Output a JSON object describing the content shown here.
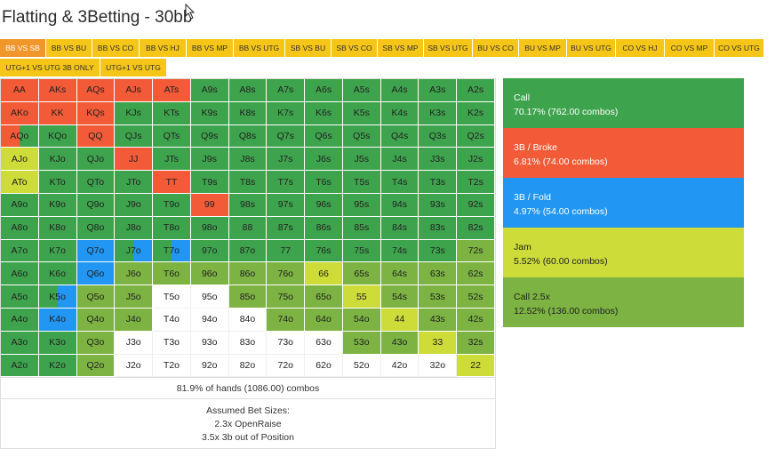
{
  "page": {
    "title": "Flatting & 3Betting - 30bb"
  },
  "colors": {
    "call": "#3ea34d",
    "broke": "#f25a38",
    "fold": "#2196f3",
    "jam": "#cddc39",
    "call25": "#7cb342",
    "none": "#ffffff",
    "tab": "#f5c518",
    "tab_active": "#f0962a"
  },
  "tabs_row1": [
    {
      "label": "BB VS SB",
      "active": true
    },
    {
      "label": "BB VS BU"
    },
    {
      "label": "BB VS CO"
    },
    {
      "label": "BB VS HJ"
    },
    {
      "label": "BB VS MP"
    },
    {
      "label": "BB VS UTG"
    },
    {
      "label": "SB VS BU"
    },
    {
      "label": "SB VS CO"
    },
    {
      "label": "SB VS MP"
    },
    {
      "label": "SB VS UTG"
    },
    {
      "label": "BU VS CO"
    },
    {
      "label": "BU VS MP"
    },
    {
      "label": "BU VS UTG"
    },
    {
      "label": "CO VS HJ"
    },
    {
      "label": "CO VS MP"
    },
    {
      "label": "CO VS UTG"
    }
  ],
  "tabs_row2": [
    {
      "label": "UTG+1 VS UTG 3B ONLY"
    },
    {
      "label": "UTG+1 VS UTG"
    }
  ],
  "grid": [
    [
      [
        "AA",
        "broke"
      ],
      [
        "AKs",
        "broke"
      ],
      [
        "AQs",
        "broke"
      ],
      [
        "AJs",
        "broke"
      ],
      [
        "ATs",
        "broke"
      ],
      [
        "A9s",
        "call"
      ],
      [
        "A8s",
        "call"
      ],
      [
        "A7s",
        "call"
      ],
      [
        "A6s",
        "call"
      ],
      [
        "A5s",
        "call"
      ],
      [
        "A4s",
        "call"
      ],
      [
        "A3s",
        "call"
      ],
      [
        "A2s",
        "call"
      ]
    ],
    [
      [
        "AKo",
        "broke"
      ],
      [
        "KK",
        "broke"
      ],
      [
        "KQs",
        "broke"
      ],
      [
        "KJs",
        "call"
      ],
      [
        "KTs",
        "call"
      ],
      [
        "K9s",
        "call"
      ],
      [
        "K8s",
        "call"
      ],
      [
        "K7s",
        "call"
      ],
      [
        "K6s",
        "call"
      ],
      [
        "K5s",
        "call"
      ],
      [
        "K4s",
        "call"
      ],
      [
        "K3s",
        "call"
      ],
      [
        "K2s",
        "call"
      ]
    ],
    [
      [
        "AQo",
        "broke",
        "call",
        0.5
      ],
      [
        "KQo",
        "call"
      ],
      [
        "QQ",
        "broke"
      ],
      [
        "QJs",
        "call"
      ],
      [
        "QTs",
        "call"
      ],
      [
        "Q9s",
        "call"
      ],
      [
        "Q8s",
        "call"
      ],
      [
        "Q7s",
        "call"
      ],
      [
        "Q6s",
        "call"
      ],
      [
        "Q5s",
        "call"
      ],
      [
        "Q4s",
        "call"
      ],
      [
        "Q3s",
        "call"
      ],
      [
        "Q2s",
        "call"
      ]
    ],
    [
      [
        "AJo",
        "jam"
      ],
      [
        "KJo",
        "call"
      ],
      [
        "QJo",
        "call"
      ],
      [
        "JJ",
        "broke"
      ],
      [
        "JTs",
        "call"
      ],
      [
        "J9s",
        "call"
      ],
      [
        "J8s",
        "call"
      ],
      [
        "J7s",
        "call"
      ],
      [
        "J6s",
        "call"
      ],
      [
        "J5s",
        "call"
      ],
      [
        "J4s",
        "call"
      ],
      [
        "J3s",
        "call"
      ],
      [
        "J2s",
        "call"
      ]
    ],
    [
      [
        "ATo",
        "jam"
      ],
      [
        "KTo",
        "call"
      ],
      [
        "QTo",
        "call"
      ],
      [
        "JTo",
        "call"
      ],
      [
        "TT",
        "broke"
      ],
      [
        "T9s",
        "call"
      ],
      [
        "T8s",
        "call"
      ],
      [
        "T7s",
        "call"
      ],
      [
        "T6s",
        "call"
      ],
      [
        "T5s",
        "call"
      ],
      [
        "T4s",
        "call"
      ],
      [
        "T3s",
        "call"
      ],
      [
        "T2s",
        "call"
      ]
    ],
    [
      [
        "A9o",
        "call"
      ],
      [
        "K9o",
        "call"
      ],
      [
        "Q9o",
        "call"
      ],
      [
        "J9o",
        "call"
      ],
      [
        "T9o",
        "call"
      ],
      [
        "99",
        "broke"
      ],
      [
        "98s",
        "call"
      ],
      [
        "97s",
        "call"
      ],
      [
        "96s",
        "call"
      ],
      [
        "95s",
        "call"
      ],
      [
        "94s",
        "call"
      ],
      [
        "93s",
        "call"
      ],
      [
        "92s",
        "call"
      ]
    ],
    [
      [
        "A8o",
        "call"
      ],
      [
        "K8o",
        "call"
      ],
      [
        "Q8o",
        "call"
      ],
      [
        "J8o",
        "call"
      ],
      [
        "T8o",
        "call"
      ],
      [
        "98o",
        "call"
      ],
      [
        "88",
        "call"
      ],
      [
        "87s",
        "call"
      ],
      [
        "86s",
        "call"
      ],
      [
        "85s",
        "call"
      ],
      [
        "84s",
        "call"
      ],
      [
        "83s",
        "call"
      ],
      [
        "82s",
        "call"
      ]
    ],
    [
      [
        "A7o",
        "call"
      ],
      [
        "K7o",
        "call"
      ],
      [
        "Q7o",
        "fold"
      ],
      [
        "J7o",
        "call",
        "fold",
        0.5
      ],
      [
        "T7o",
        "call",
        "fold",
        0.5
      ],
      [
        "97o",
        "call"
      ],
      [
        "87o",
        "call"
      ],
      [
        "77",
        "call"
      ],
      [
        "76s",
        "call"
      ],
      [
        "75s",
        "call"
      ],
      [
        "74s",
        "call"
      ],
      [
        "73s",
        "call"
      ],
      [
        "72s",
        "c25"
      ]
    ],
    [
      [
        "A6o",
        "call"
      ],
      [
        "K6o",
        "call"
      ],
      [
        "Q6o",
        "fold"
      ],
      [
        "J6o",
        "c25"
      ],
      [
        "T6o",
        "c25"
      ],
      [
        "96o",
        "c25"
      ],
      [
        "86o",
        "c25"
      ],
      [
        "76o",
        "c25"
      ],
      [
        "66",
        "jam"
      ],
      [
        "65s",
        "c25"
      ],
      [
        "64s",
        "c25"
      ],
      [
        "63s",
        "c25"
      ],
      [
        "62s",
        "c25"
      ]
    ],
    [
      [
        "A5o",
        "call"
      ],
      [
        "K5o",
        "call",
        "fold",
        0.5
      ],
      [
        "Q5o",
        "c25"
      ],
      [
        "J5o",
        "c25"
      ],
      [
        "T5o",
        "none"
      ],
      [
        "95o",
        "none"
      ],
      [
        "85o",
        "c25"
      ],
      [
        "75o",
        "c25"
      ],
      [
        "65o",
        "c25"
      ],
      [
        "55",
        "jam"
      ],
      [
        "54s",
        "c25"
      ],
      [
        "53s",
        "c25"
      ],
      [
        "52s",
        "c25"
      ]
    ],
    [
      [
        "A4o",
        "call"
      ],
      [
        "K4o",
        "fold"
      ],
      [
        "Q4o",
        "c25"
      ],
      [
        "J4o",
        "c25"
      ],
      [
        "T4o",
        "none"
      ],
      [
        "94o",
        "none"
      ],
      [
        "84o",
        "none"
      ],
      [
        "74o",
        "c25"
      ],
      [
        "64o",
        "c25"
      ],
      [
        "54o",
        "c25"
      ],
      [
        "44",
        "jam"
      ],
      [
        "43s",
        "c25"
      ],
      [
        "42s",
        "c25"
      ]
    ],
    [
      [
        "A3o",
        "call"
      ],
      [
        "K3o",
        "call"
      ],
      [
        "Q3o",
        "c25"
      ],
      [
        "J3o",
        "none"
      ],
      [
        "T3o",
        "none"
      ],
      [
        "93o",
        "none"
      ],
      [
        "83o",
        "none"
      ],
      [
        "73o",
        "none"
      ],
      [
        "63o",
        "none"
      ],
      [
        "53o",
        "c25"
      ],
      [
        "43o",
        "c25"
      ],
      [
        "33",
        "jam"
      ],
      [
        "32s",
        "c25"
      ]
    ],
    [
      [
        "A2o",
        "call"
      ],
      [
        "K2o",
        "call"
      ],
      [
        "Q2o",
        "c25"
      ],
      [
        "J2o",
        "none"
      ],
      [
        "T2o",
        "none"
      ],
      [
        "92o",
        "none"
      ],
      [
        "82o",
        "none"
      ],
      [
        "72o",
        "none"
      ],
      [
        "62o",
        "none"
      ],
      [
        "52o",
        "none"
      ],
      [
        "42o",
        "none"
      ],
      [
        "32o",
        "none"
      ],
      [
        "22",
        "jam"
      ]
    ]
  ],
  "summary": "81.9% of hands (1086.00) combos",
  "bet_sizes": {
    "heading": "Assumed Bet Sizes:",
    "line1": "2.3x OpenRaise",
    "line2": "3.5x 3b out of Position"
  },
  "legend": [
    {
      "action": "call",
      "label": "Call",
      "stats": "70.17% (762.00 combos)"
    },
    {
      "action": "broke",
      "label": "3B / Broke",
      "stats": "6.81% (74.00 combos)"
    },
    {
      "action": "fold",
      "label": "3B / Fold",
      "stats": "4.97% (54.00 combos)"
    },
    {
      "action": "jam",
      "label": "Jam",
      "stats": "5.52% (60.00 combos)"
    },
    {
      "action": "c25",
      "label": "Call 2.5x",
      "stats": "12.52% (136.00 combos)"
    }
  ]
}
